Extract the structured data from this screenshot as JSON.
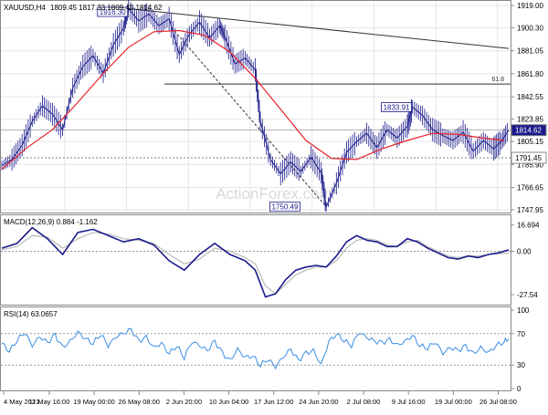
{
  "chart_data": [
    {
      "panel": "price",
      "type": "candlestick",
      "header_symbol": "XAUUSD,H4",
      "header_ohlc": "1809.45 1817.33 1809.45 1814.62",
      "watermark": "ActionForex.com",
      "price_axis": [
        "1919.00",
        "1900.30",
        "1881.05",
        "1861.80",
        "1842.55",
        "1823.85",
        "1805.15",
        "1785.90",
        "1766.65",
        "1747.95"
      ],
      "ylim": [
        1747.95,
        1919.0
      ],
      "current_price": "1814.62",
      "marker_price": "1791.45",
      "fib_label": "61.8",
      "fib_level": 1853.2,
      "annotations": [
        {
          "label": "1916.30",
          "x": 0.25,
          "value": 1916.3
        },
        {
          "label": "1833.91",
          "x": 0.81,
          "value": 1833.91
        },
        {
          "label": "1750.49",
          "x": 0.59,
          "value": 1750.49
        }
      ],
      "trend_lines": [
        {
          "from": [
            0.25,
            1916.3
          ],
          "to": [
            1.0,
            1883.0
          ]
        },
        {
          "from": [
            0.34,
            1898.0
          ],
          "to": [
            0.64,
            1750.49
          ],
          "dash": true
        }
      ],
      "ma_line": [
        [
          0.0,
          1782
        ],
        [
          0.05,
          1800
        ],
        [
          0.1,
          1815
        ],
        [
          0.15,
          1838
        ],
        [
          0.2,
          1862
        ],
        [
          0.25,
          1884
        ],
        [
          0.3,
          1897
        ],
        [
          0.35,
          1898
        ],
        [
          0.4,
          1894
        ],
        [
          0.45,
          1880
        ],
        [
          0.5,
          1858
        ],
        [
          0.55,
          1832
        ],
        [
          0.6,
          1806
        ],
        [
          0.65,
          1791
        ],
        [
          0.7,
          1790
        ],
        [
          0.75,
          1799
        ],
        [
          0.8,
          1806
        ],
        [
          0.85,
          1812
        ],
        [
          0.9,
          1811
        ],
        [
          0.95,
          1808
        ],
        [
          0.99,
          1806
        ]
      ],
      "price_path": [
        [
          0.0,
          1785
        ],
        [
          0.02,
          1790
        ],
        [
          0.04,
          1802
        ],
        [
          0.06,
          1822
        ],
        [
          0.08,
          1835
        ],
        [
          0.1,
          1828
        ],
        [
          0.12,
          1815
        ],
        [
          0.14,
          1850
        ],
        [
          0.16,
          1868
        ],
        [
          0.18,
          1877
        ],
        [
          0.2,
          1862
        ],
        [
          0.22,
          1886
        ],
        [
          0.24,
          1900
        ],
        [
          0.25,
          1916.3
        ],
        [
          0.27,
          1906
        ],
        [
          0.29,
          1912
        ],
        [
          0.31,
          1902
        ],
        [
          0.33,
          1908
        ],
        [
          0.35,
          1878
        ],
        [
          0.37,
          1895
        ],
        [
          0.39,
          1905
        ],
        [
          0.41,
          1892
        ],
        [
          0.43,
          1902
        ],
        [
          0.44,
          1893
        ],
        [
          0.46,
          1870
        ],
        [
          0.48,
          1875
        ],
        [
          0.5,
          1865
        ],
        [
          0.51,
          1822
        ],
        [
          0.53,
          1790
        ],
        [
          0.55,
          1778
        ],
        [
          0.57,
          1788
        ],
        [
          0.59,
          1780
        ],
        [
          0.61,
          1792
        ],
        [
          0.63,
          1779
        ],
        [
          0.64,
          1750.49
        ],
        [
          0.66,
          1770
        ],
        [
          0.68,
          1796
        ],
        [
          0.7,
          1805
        ],
        [
          0.72,
          1812
        ],
        [
          0.74,
          1800
        ],
        [
          0.76,
          1815
        ],
        [
          0.78,
          1808
        ],
        [
          0.8,
          1818
        ],
        [
          0.81,
          1833.91
        ],
        [
          0.83,
          1827
        ],
        [
          0.85,
          1815
        ],
        [
          0.87,
          1810
        ],
        [
          0.89,
          1806
        ],
        [
          0.91,
          1813
        ],
        [
          0.93,
          1797
        ],
        [
          0.95,
          1806
        ],
        [
          0.97,
          1799
        ],
        [
          0.985,
          1805
        ],
        [
          1.0,
          1814.62
        ]
      ]
    },
    {
      "panel": "macd",
      "type": "line",
      "label": "MACD(12,26,9) 0.884 -1.162",
      "axis": [
        "16.694",
        "0.00",
        "-27.54"
      ],
      "ylim": [
        -31,
        20
      ],
      "macd_line": [
        [
          0.0,
          2
        ],
        [
          0.03,
          5
        ],
        [
          0.06,
          15
        ],
        [
          0.09,
          8
        ],
        [
          0.12,
          -2
        ],
        [
          0.15,
          12
        ],
        [
          0.18,
          14
        ],
        [
          0.21,
          10
        ],
        [
          0.24,
          6
        ],
        [
          0.27,
          8
        ],
        [
          0.3,
          4
        ],
        [
          0.33,
          -6
        ],
        [
          0.36,
          -12
        ],
        [
          0.39,
          -2
        ],
        [
          0.42,
          5
        ],
        [
          0.45,
          -2
        ],
        [
          0.48,
          -6
        ],
        [
          0.5,
          -12
        ],
        [
          0.52,
          -29
        ],
        [
          0.54,
          -27
        ],
        [
          0.56,
          -18
        ],
        [
          0.58,
          -12
        ],
        [
          0.6,
          -10
        ],
        [
          0.62,
          -9
        ],
        [
          0.64,
          -10
        ],
        [
          0.66,
          -3
        ],
        [
          0.68,
          6
        ],
        [
          0.7,
          10
        ],
        [
          0.72,
          7
        ],
        [
          0.74,
          6
        ],
        [
          0.76,
          3
        ],
        [
          0.78,
          3
        ],
        [
          0.8,
          8
        ],
        [
          0.82,
          6
        ],
        [
          0.84,
          2
        ],
        [
          0.86,
          -1
        ],
        [
          0.88,
          -4
        ],
        [
          0.9,
          -5
        ],
        [
          0.92,
          -3
        ],
        [
          0.94,
          -4
        ],
        [
          0.96,
          -2
        ],
        [
          0.98,
          -1
        ],
        [
          1.0,
          0.884
        ]
      ],
      "signal_line": [
        [
          0.0,
          1
        ],
        [
          0.03,
          3
        ],
        [
          0.06,
          10
        ],
        [
          0.09,
          9
        ],
        [
          0.12,
          2
        ],
        [
          0.15,
          8
        ],
        [
          0.18,
          12
        ],
        [
          0.21,
          11
        ],
        [
          0.24,
          8
        ],
        [
          0.27,
          7
        ],
        [
          0.3,
          5
        ],
        [
          0.33,
          -2
        ],
        [
          0.36,
          -8
        ],
        [
          0.39,
          -5
        ],
        [
          0.42,
          2
        ],
        [
          0.45,
          0
        ],
        [
          0.48,
          -4
        ],
        [
          0.5,
          -8
        ],
        [
          0.52,
          -22
        ],
        [
          0.54,
          -27
        ],
        [
          0.56,
          -21
        ],
        [
          0.58,
          -15
        ],
        [
          0.6,
          -12
        ],
        [
          0.62,
          -10
        ],
        [
          0.64,
          -10
        ],
        [
          0.66,
          -6
        ],
        [
          0.68,
          2
        ],
        [
          0.7,
          7
        ],
        [
          0.72,
          8
        ],
        [
          0.74,
          7
        ],
        [
          0.76,
          4
        ],
        [
          0.78,
          3
        ],
        [
          0.8,
          6
        ],
        [
          0.82,
          7
        ],
        [
          0.84,
          3
        ],
        [
          0.86,
          0
        ],
        [
          0.88,
          -3
        ],
        [
          0.9,
          -4
        ],
        [
          0.92,
          -3
        ],
        [
          0.94,
          -3
        ],
        [
          0.96,
          -2
        ],
        [
          0.98,
          -1.5
        ],
        [
          1.0,
          -1.162
        ]
      ]
    },
    {
      "panel": "rsi",
      "type": "line",
      "label": "RSI(14) 63.0657",
      "axis": [
        "100",
        "70",
        "30",
        "0"
      ],
      "ylim": [
        0,
        100
      ],
      "levels": [
        70,
        30
      ],
      "rsi_line": [
        [
          0.0,
          58
        ],
        [
          0.015,
          48
        ],
        [
          0.03,
          62
        ],
        [
          0.045,
          72
        ],
        [
          0.06,
          55
        ],
        [
          0.075,
          66
        ],
        [
          0.09,
          58
        ],
        [
          0.105,
          68
        ],
        [
          0.12,
          52
        ],
        [
          0.135,
          60
        ],
        [
          0.15,
          72
        ],
        [
          0.165,
          64
        ],
        [
          0.18,
          58
        ],
        [
          0.195,
          70
        ],
        [
          0.21,
          55
        ],
        [
          0.225,
          66
        ],
        [
          0.24,
          70
        ],
        [
          0.255,
          75
        ],
        [
          0.27,
          60
        ],
        [
          0.285,
          65
        ],
        [
          0.3,
          52
        ],
        [
          0.315,
          58
        ],
        [
          0.33,
          45
        ],
        [
          0.345,
          55
        ],
        [
          0.36,
          40
        ],
        [
          0.375,
          60
        ],
        [
          0.39,
          55
        ],
        [
          0.405,
          48
        ],
        [
          0.42,
          60
        ],
        [
          0.435,
          45
        ],
        [
          0.45,
          35
        ],
        [
          0.465,
          50
        ],
        [
          0.48,
          40
        ],
        [
          0.495,
          42
        ],
        [
          0.51,
          30
        ],
        [
          0.525,
          38
        ],
        [
          0.54,
          28
        ],
        [
          0.555,
          40
        ],
        [
          0.57,
          50
        ],
        [
          0.585,
          35
        ],
        [
          0.6,
          45
        ],
        [
          0.615,
          48
        ],
        [
          0.63,
          30
        ],
        [
          0.645,
          60
        ],
        [
          0.66,
          70
        ],
        [
          0.675,
          62
        ],
        [
          0.69,
          55
        ],
        [
          0.705,
          72
        ],
        [
          0.72,
          65
        ],
        [
          0.735,
          60
        ],
        [
          0.75,
          58
        ],
        [
          0.765,
          62
        ],
        [
          0.78,
          55
        ],
        [
          0.795,
          60
        ],
        [
          0.81,
          68
        ],
        [
          0.825,
          55
        ],
        [
          0.84,
          52
        ],
        [
          0.855,
          60
        ],
        [
          0.87,
          45
        ],
        [
          0.885,
          52
        ],
        [
          0.9,
          48
        ],
        [
          0.915,
          54
        ],
        [
          0.93,
          44
        ],
        [
          0.945,
          52
        ],
        [
          0.96,
          46
        ],
        [
          0.975,
          55
        ],
        [
          0.99,
          60
        ],
        [
          1.0,
          63.0657
        ]
      ]
    }
  ],
  "time_axis": [
    {
      "label": "4 May 2021",
      "x": 0.0
    },
    {
      "label": "11 May 16:00",
      "x": 0.124
    },
    {
      "label": "19 May 00:00",
      "x": 0.246
    },
    {
      "label": "26 May 08:00",
      "x": 0.368
    },
    {
      "label": "2 Jun 20:00",
      "x": 0.49
    },
    {
      "label": "10 Jun 04:00",
      "x": 0.612
    },
    {
      "label": "17 Jun 12:00",
      "x": 0.734
    },
    {
      "label": "24 Jun 20:00",
      "x": 0.856
    },
    {
      "label": "2 Jul 08:00",
      "x": 0.978
    },
    {
      "label": "9 Jul 16:00",
      "x": 1.1
    },
    {
      "label": "19 Jul 00:00",
      "x": 1.222
    },
    {
      "label": "26 Jul 08:00",
      "x": 1.344
    }
  ],
  "colors": {
    "price": "#1a1a8c",
    "ma": "#e8202a",
    "signal": "#bbbbbb",
    "rsi": "#3a8ee6",
    "trend": "#333333",
    "grid": "#e6e6e6",
    "label_box": "#1a1a8c"
  }
}
